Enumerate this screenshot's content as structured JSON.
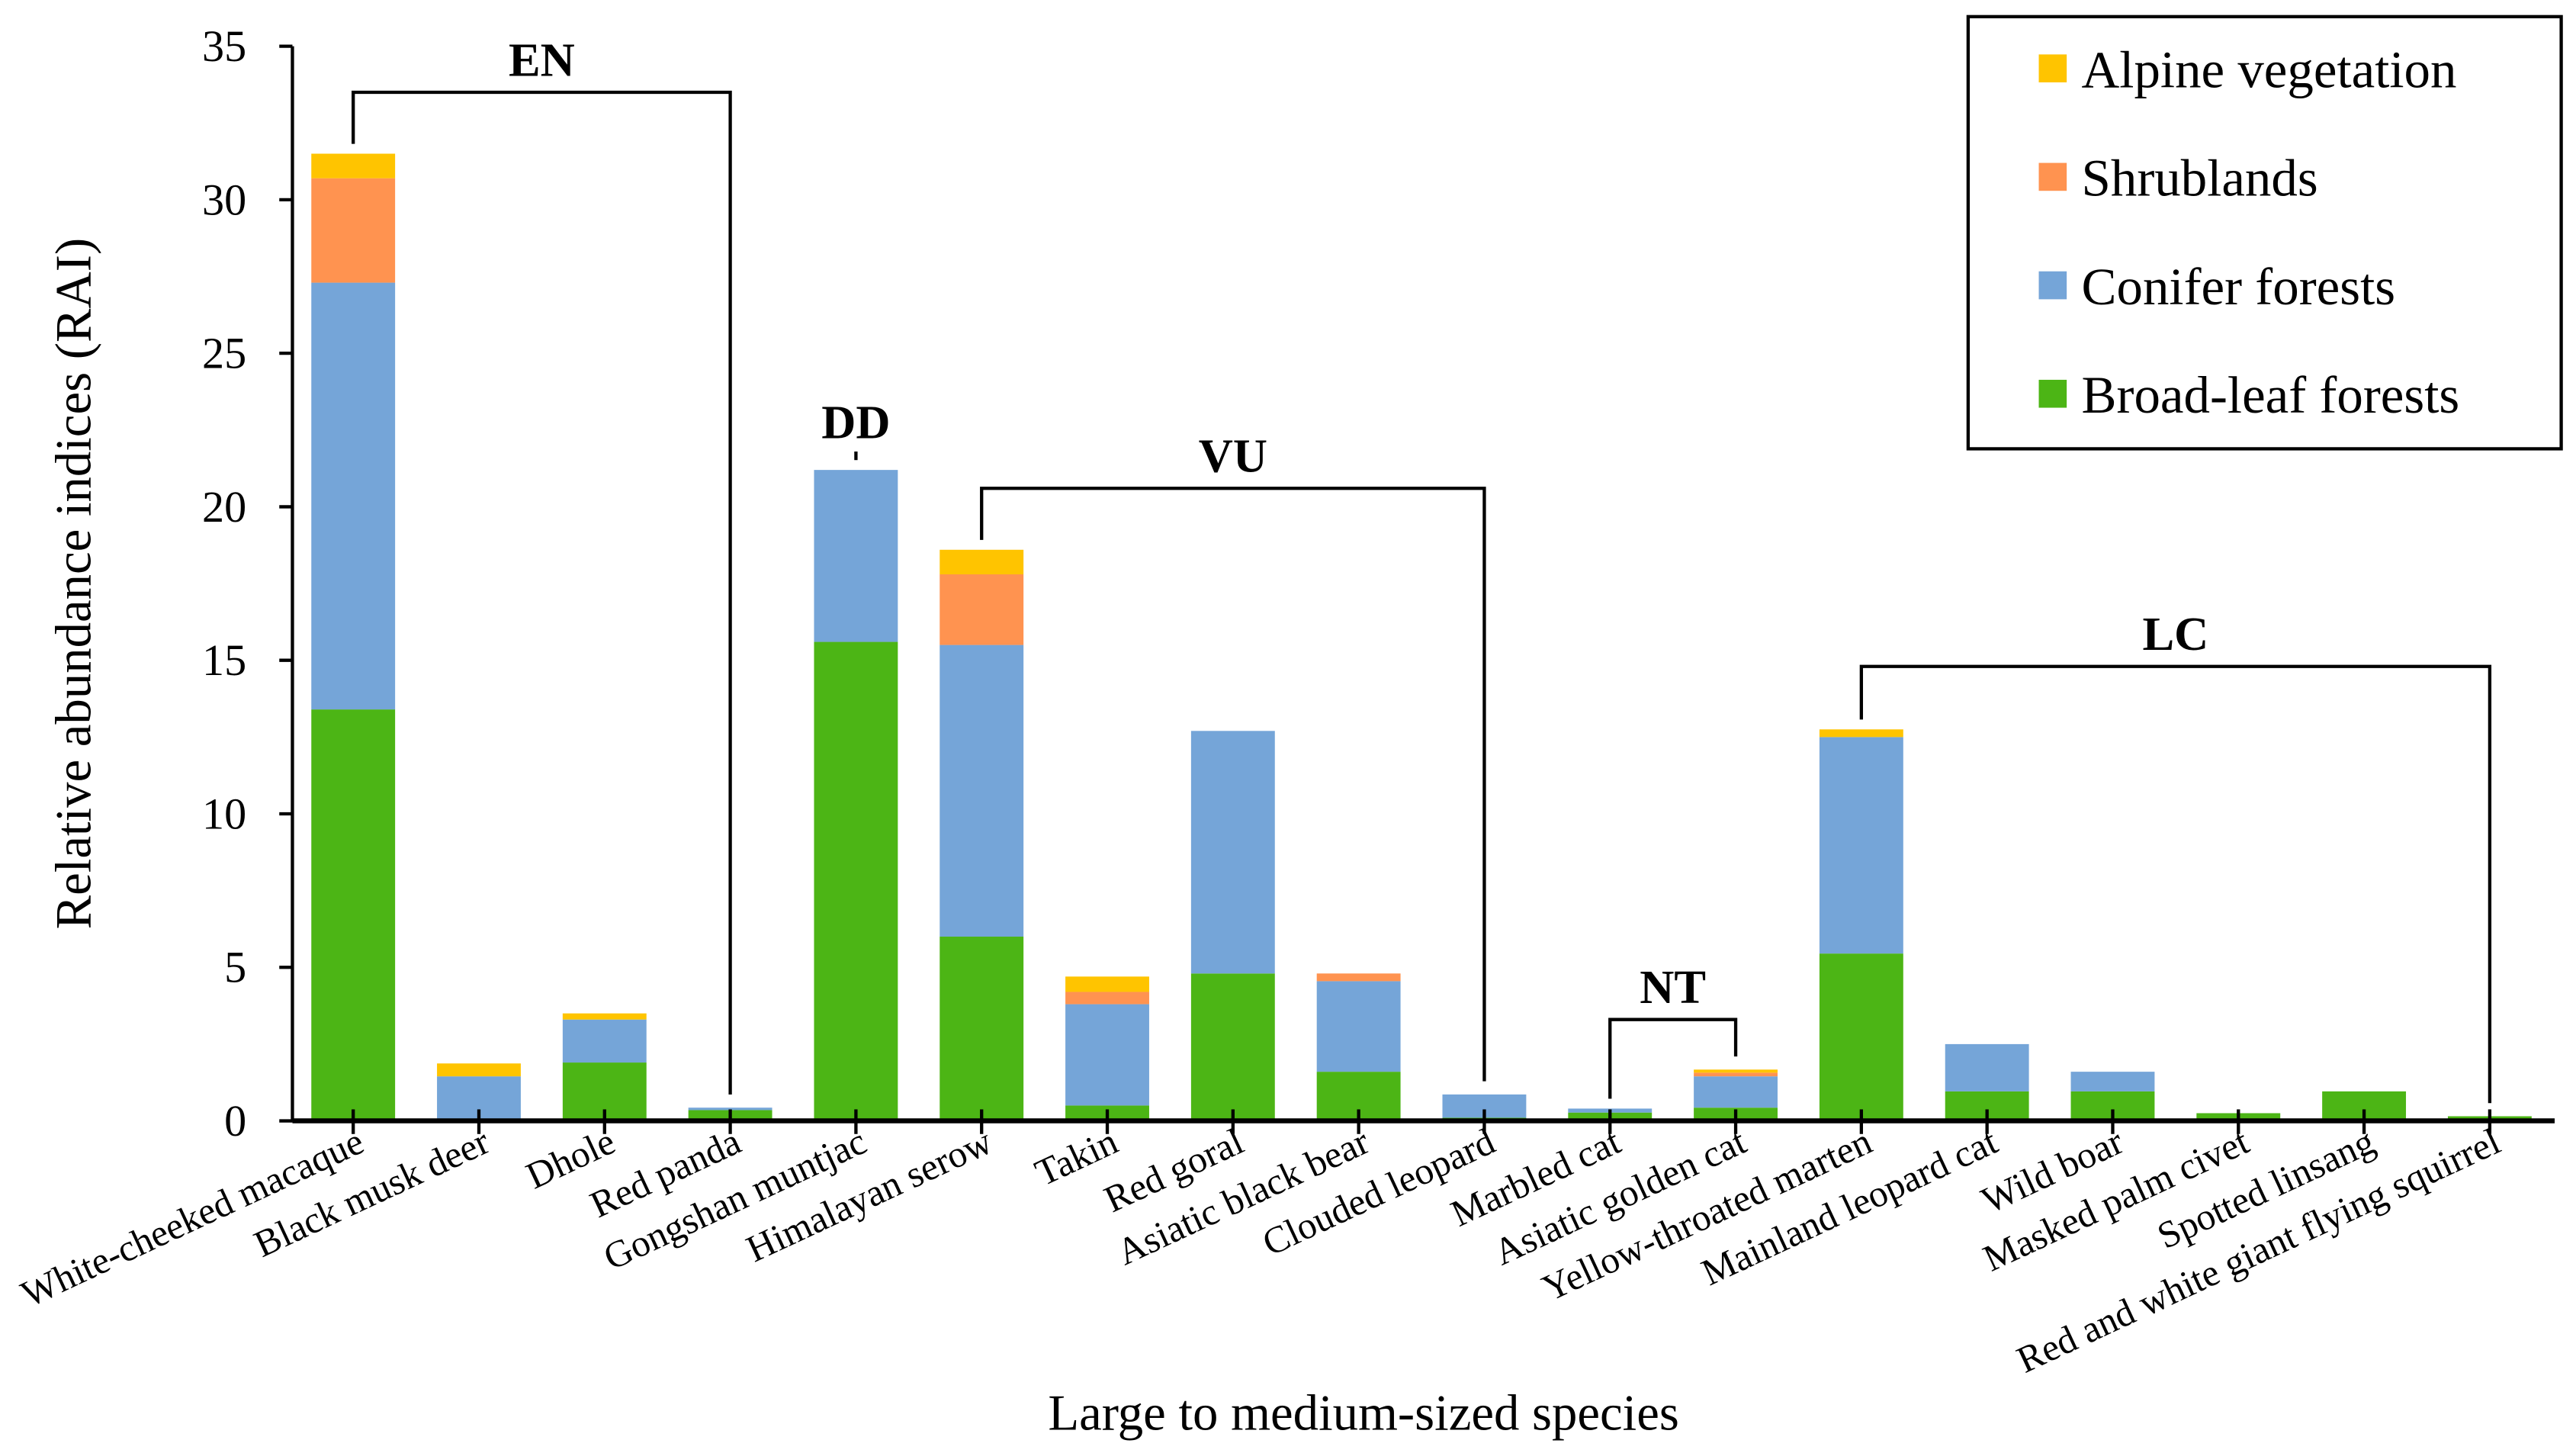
{
  "chart_data": {
    "type": "bar",
    "stacked": true,
    "title": "",
    "xlabel": "Large to medium-sized species",
    "ylabel": "Relative abundance indices (RAI)",
    "ylim": [
      0,
      35
    ],
    "yticks": [
      0,
      5,
      10,
      15,
      20,
      25,
      30,
      35
    ],
    "grid": false,
    "legend_position": "top-right",
    "categories": [
      "White-cheeked macaque",
      "Black musk deer",
      "Dhole",
      "Red panda",
      "Gongshan muntjac",
      "Himalayan serow",
      "Takin",
      "Red goral",
      "Asiatic black bear",
      "Clouded leopard",
      "Marbled cat",
      "Asiatic golden cat",
      "Yellow-throated marten",
      "Mainland leopard cat",
      "Wild boar",
      "Masked palm civet",
      "Spotted linsang",
      "Red and white giant flying squirrel"
    ],
    "series": [
      {
        "name": "Broad-leaf forests",
        "color": "#4cb515",
        "values": [
          13.4,
          0.0,
          1.9,
          0.35,
          15.6,
          6.0,
          0.5,
          4.8,
          1.6,
          0.1,
          0.27,
          0.43,
          5.45,
          0.96,
          0.96,
          0.25,
          0.96,
          0.15
        ]
      },
      {
        "name": "Conifer forests",
        "color": "#75a5d8",
        "values": [
          13.9,
          1.45,
          1.4,
          0.08,
          5.6,
          9.5,
          3.3,
          7.9,
          2.95,
          0.76,
          0.13,
          1.02,
          7.05,
          1.54,
          0.64,
          0,
          0,
          0
        ]
      },
      {
        "name": "Shrublands",
        "color": "#ff9350",
        "values": [
          3.4,
          0,
          0,
          0,
          0,
          2.3,
          0.4,
          0,
          0.25,
          0,
          0,
          0.12,
          0,
          0,
          0,
          0,
          0,
          0
        ]
      },
      {
        "name": "Alpine vegetation",
        "color": "#ffc400",
        "values": [
          0.8,
          0.42,
          0.2,
          0,
          0,
          0.8,
          0.5,
          0,
          0,
          0,
          0,
          0.1,
          0.25,
          0,
          0,
          0,
          0,
          0
        ]
      }
    ],
    "legend_order": [
      "Alpine vegetation",
      "Shrublands",
      "Conifer forests",
      "Broad-leaf forests"
    ],
    "annotations": [
      {
        "label": "EN",
        "from": 0,
        "to": 3,
        "level": 33.5
      },
      {
        "label": "DD",
        "from": 4,
        "to": 4,
        "level": 21.8
      },
      {
        "label": "VU",
        "from": 5,
        "to": 9,
        "level": 20.6
      },
      {
        "label": "NT",
        "from": 10,
        "to": 11,
        "level": 3.3
      },
      {
        "label": "LC",
        "from": 12,
        "to": 17,
        "level": 14.8
      }
    ]
  }
}
